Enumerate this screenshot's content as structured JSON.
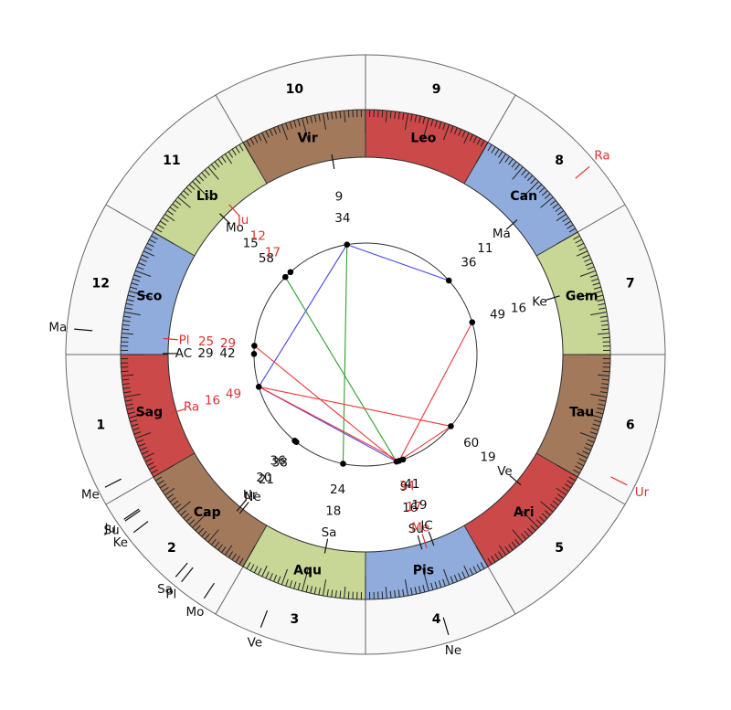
{
  "chart_data": {
    "type": "astrology-wheel",
    "title": "",
    "houses": [
      "1",
      "2",
      "3",
      "4",
      "5",
      "6",
      "7",
      "8",
      "9",
      "10",
      "11",
      "12"
    ],
    "signs": [
      {
        "abbr": "Ari",
        "element": "fire"
      },
      {
        "abbr": "Tau",
        "element": "earth"
      },
      {
        "abbr": "Gem",
        "element": "air"
      },
      {
        "abbr": "Can",
        "element": "water"
      },
      {
        "abbr": "Leo",
        "element": "fire"
      },
      {
        "abbr": "Vir",
        "element": "earth"
      },
      {
        "abbr": "Lib",
        "element": "air"
      },
      {
        "abbr": "Sco",
        "element": "water"
      },
      {
        "abbr": "Sag",
        "element": "fire"
      },
      {
        "abbr": "Cap",
        "element": "earth"
      },
      {
        "abbr": "Aqu",
        "element": "air"
      },
      {
        "abbr": "Pis",
        "element": "water"
      }
    ],
    "sign_start_angle": {
      "Ari": 300,
      "Tau": 330,
      "Gem": 0,
      "Can": 30,
      "Leo": 60,
      "Vir": 90,
      "Lib": 120,
      "Sco": 150,
      "Sag": 180,
      "Cap": 210,
      "Aqu": 240,
      "Pis": 270
    },
    "natal_planets": [
      {
        "id": "MC",
        "label": "",
        "deg": "9",
        "min": "34",
        "sign": "Vir",
        "color": "black"
      },
      {
        "id": "Mo",
        "label": "Mo",
        "deg": "15",
        "min": "58",
        "sign": "Lib",
        "color": "black"
      },
      {
        "id": "Ju",
        "label": "Ju",
        "deg": "12",
        "min": "17",
        "sign": "Lib",
        "color": "red"
      },
      {
        "id": "Pl",
        "label": "Pl",
        "deg": "25",
        "min": "29",
        "sign": "Sco",
        "color": "red"
      },
      {
        "id": "AC",
        "label": "AC",
        "deg": "29",
        "min": "42",
        "sign": "Sco",
        "color": "black"
      },
      {
        "id": "Ra",
        "label": "Ra",
        "deg": "16",
        "min": "49",
        "sign": "Sag",
        "color": "red"
      },
      {
        "id": "Ur",
        "label": "Ur",
        "deg": "20",
        "min": "36",
        "sign": "Cap",
        "color": "black"
      },
      {
        "id": "Ne",
        "label": "Ne",
        "deg": "21",
        "min": "38",
        "sign": "Cap",
        "color": "black"
      },
      {
        "id": "Sa",
        "label": "Sa",
        "deg": "18",
        "min": "24",
        "sign": "Aqu",
        "color": "black"
      },
      {
        "id": "Su",
        "label": "Su",
        "deg": "16",
        "min": "9",
        "sign": "Pis",
        "color": "black"
      },
      {
        "id": "Me",
        "label": "Me",
        "deg": "17",
        "min": "34",
        "sign": "Pis",
        "color": "red"
      },
      {
        "id": "IC",
        "label": "IC",
        "deg": "19",
        "min": "41",
        "sign": "Pis",
        "color": "black"
      },
      {
        "id": "Ma",
        "label": "Ma",
        "deg": "11",
        "min": "36",
        "sign": "Can",
        "color": "black"
      },
      {
        "id": "Ke",
        "label": "Ke",
        "deg": "16",
        "min": "49",
        "sign": "Gem",
        "color": "black"
      },
      {
        "id": "Ve",
        "label": "Ve",
        "deg": "19",
        "min": "60",
        "sign": "Ari",
        "color": "black"
      }
    ],
    "transit_planets": [
      {
        "id": "tMa",
        "label": "Ma",
        "sign": "Sco",
        "deg": 25,
        "min": 0,
        "color": "black"
      },
      {
        "id": "tMe",
        "label": "Me",
        "sign": "Sag",
        "deg": 27,
        "min": 0,
        "color": "black"
      },
      {
        "id": "tSu",
        "label": "Su",
        "sign": "Cap",
        "deg": 4,
        "min": 42,
        "color": "black"
      },
      {
        "id": "tJu",
        "label": "Ju",
        "sign": "Cap",
        "deg": 4,
        "min": 18,
        "color": "black"
      },
      {
        "id": "tKe",
        "label": "Ke",
        "sign": "Cap",
        "deg": 7,
        "min": 30,
        "color": "black"
      },
      {
        "id": "tSa",
        "label": "Sa",
        "sign": "Cap",
        "deg": 19,
        "min": 30,
        "color": "black"
      },
      {
        "id": "tPl",
        "label": "Pl",
        "sign": "Cap",
        "deg": 21,
        "min": 0,
        "color": "black"
      },
      {
        "id": "tMo",
        "label": "Mo",
        "sign": "Cap",
        "deg": 26,
        "min": 30,
        "color": "black"
      },
      {
        "id": "tVe",
        "label": "Ve",
        "sign": "Aqu",
        "deg": 9,
        "min": 0,
        "color": "black"
      },
      {
        "id": "tNe",
        "label": "Ne",
        "sign": "Pis",
        "deg": 16,
        "min": 30,
        "color": "black"
      },
      {
        "id": "tUr",
        "label": "Ur",
        "sign": "Tau",
        "deg": 3,
        "min": 30,
        "color": "red"
      },
      {
        "id": "tRa",
        "label": "Ra",
        "sign": "Can",
        "deg": 10,
        "min": 0,
        "color": "red"
      }
    ],
    "aspects": [
      {
        "a": "MC",
        "b": "Ma",
        "color": "blue"
      },
      {
        "a": "MC",
        "b": "Ra",
        "color": "blue"
      },
      {
        "a": "Ra",
        "b": "Su",
        "color": "blue"
      },
      {
        "a": "MC",
        "b": "Sa",
        "color": "green"
      },
      {
        "a": "Mo",
        "b": "Su",
        "color": "green"
      },
      {
        "a": "Pl",
        "b": "Su",
        "color": "red"
      },
      {
        "a": "Ra",
        "b": "Me",
        "color": "red"
      },
      {
        "a": "Ra",
        "b": "Ve",
        "color": "red"
      },
      {
        "a": "Me",
        "b": "Ve",
        "color": "red"
      },
      {
        "a": "Me",
        "b": "Ke",
        "color": "red"
      }
    ],
    "colors": {
      "fire": "#CC4949",
      "earth": "#A3795C",
      "air": "#C8D795",
      "water": "#90ACDC",
      "ring_bg": "#F8F8F8",
      "stroke": "#444444",
      "black_text": "#111111",
      "red_text": "#E03232",
      "aspect_blue": "#4444EE",
      "aspect_green": "#2F9E2F",
      "aspect_red": "#EE3939"
    },
    "legend_position": "none",
    "grid": false
  }
}
